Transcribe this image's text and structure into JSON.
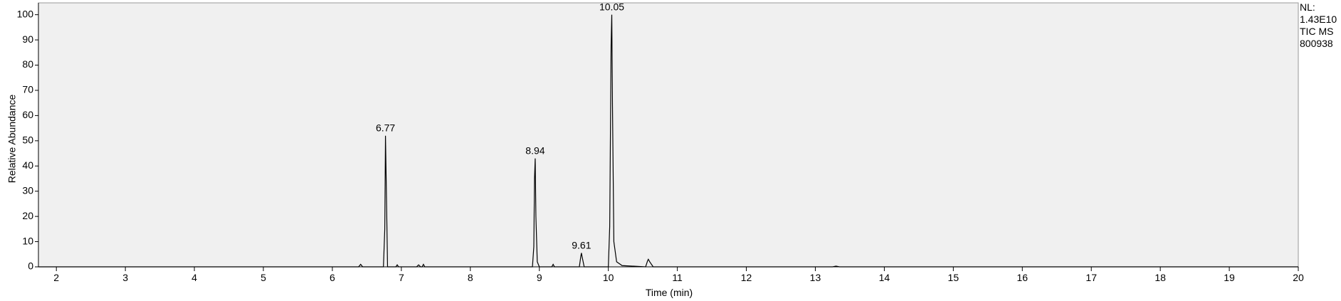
{
  "chart_data": {
    "type": "line",
    "y_label": "Relative Abundance",
    "x_label": "Time (min)",
    "info_lines": [
      "NL:",
      "1.43E10",
      "TIC  MS",
      "800938"
    ],
    "xlim": [
      1.74,
      20
    ],
    "ylim": [
      0,
      104.7
    ],
    "xticks": [
      2,
      3,
      4,
      5,
      6,
      7,
      8,
      9,
      10,
      11,
      12,
      13,
      14,
      15,
      16,
      17,
      18,
      19,
      20
    ],
    "yticks": [
      0,
      10,
      20,
      30,
      40,
      50,
      60,
      70,
      80,
      90,
      100
    ],
    "series": [
      {
        "color": "#000000",
        "x": [
          1.74,
          6.38,
          6.41,
          6.44,
          6.74,
          6.76,
          6.77,
          6.78,
          6.8,
          6.92,
          6.94,
          6.96,
          7.22,
          7.25,
          7.28,
          7.3,
          7.32,
          7.34,
          8.9,
          8.92,
          8.93,
          8.94,
          8.95,
          8.97,
          9.0,
          9.18,
          9.2,
          9.22,
          9.58,
          9.6,
          9.61,
          9.62,
          9.65,
          10.0,
          10.02,
          10.04,
          10.05,
          10.06,
          10.08,
          10.12,
          10.2,
          10.54,
          10.57,
          10.58,
          10.6,
          10.65,
          13.25,
          13.3,
          13.35,
          20.0
        ],
        "values": [
          0,
          0,
          1,
          0,
          0,
          15,
          52,
          35,
          0,
          0,
          0.8,
          0,
          0,
          0.8,
          0,
          0,
          1,
          0,
          0,
          8,
          35,
          43,
          20,
          2,
          0,
          0,
          1,
          0,
          0,
          4,
          5.5,
          4,
          0,
          0,
          16,
          88,
          100,
          64,
          10,
          2,
          0.5,
          0,
          2.5,
          3,
          2,
          0,
          0,
          0.3,
          0,
          0
        ]
      }
    ],
    "annotations": [
      {
        "x": 6.77,
        "y": 52
      },
      {
        "x": 8.94,
        "y": 43
      },
      {
        "x": 9.61,
        "y": 5.5
      },
      {
        "x": 10.05,
        "y": 100
      }
    ]
  }
}
